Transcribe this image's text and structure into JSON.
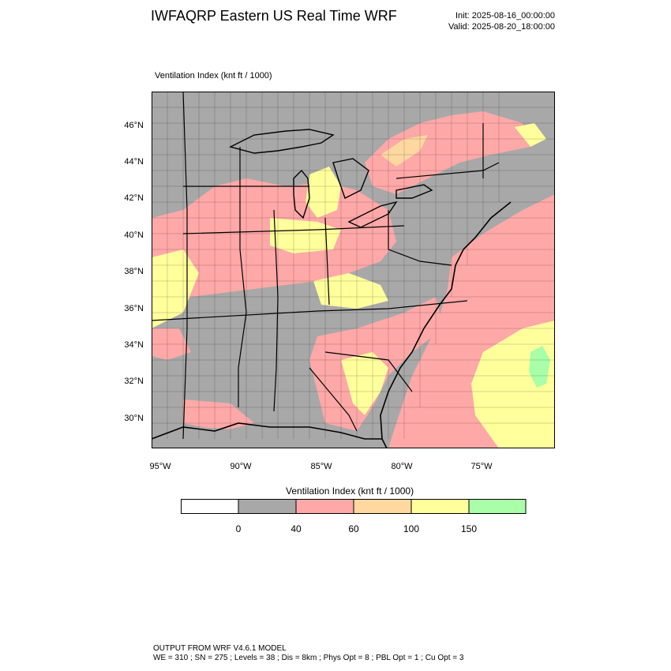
{
  "header": {
    "title": "IWFAQRP Eastern US Real Time WRF",
    "init": "Init: 2025-08-16_00:00:00",
    "valid": "Valid: 2025-08-20_18:00:00"
  },
  "map": {
    "field_label": "Ventilation Index   (knt ft / 1000)",
    "lat_labels": [
      "46°N",
      "44°N",
      "42°N",
      "40°N",
      "38°N",
      "36°N",
      "34°N",
      "32°N",
      "30°N"
    ],
    "lon_labels": [
      "95°W",
      "90°W",
      "85°W",
      "80°W",
      "75°W"
    ],
    "colors": {
      "none": "#ffffff",
      "c0_40": "#a8a8a8",
      "c40_60": "#ffa8a8",
      "c60_100": "#ffd8a0",
      "c100_150": "#ffff9c",
      "c150_plus": "#a8ffa8"
    }
  },
  "colorbar": {
    "title": "Ventilation Index  (knt ft / 1000)",
    "labels": [
      "0",
      "40",
      "60",
      "100",
      "150"
    ],
    "colors": [
      "#ffffff",
      "#a8a8a8",
      "#ffa8a8",
      "#ffd8a0",
      "#ffff9c",
      "#a8ffa8"
    ]
  },
  "footer": {
    "line1": "OUTPUT FROM WRF V4.6.1 MODEL",
    "line2": "WE = 310 ; SN = 275 ; Levels = 38 ; Dis = 8km ; Phys Opt = 8 ; PBL Opt = 1 ; Cu Opt = 3"
  }
}
